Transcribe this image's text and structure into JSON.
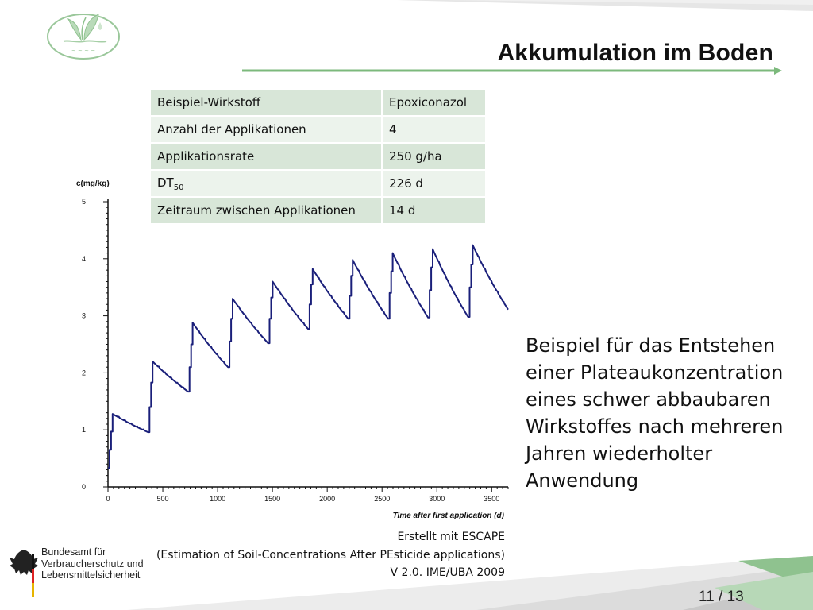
{
  "slide": {
    "title": "Akkumulation im Boden",
    "accent_color": "#7cb97c",
    "page_current": "11",
    "page_sep": "/",
    "page_total": "13"
  },
  "table": {
    "rows": [
      {
        "label": "Beispiel-Wirkstoff",
        "value": "Epoxiconazol"
      },
      {
        "label": "Anzahl der Applikationen",
        "value": "4"
      },
      {
        "label": "Applikationsrate",
        "value": "250 g/ha"
      },
      {
        "label": "DT",
        "label_sub": "50",
        "value": "226 d"
      },
      {
        "label": "Zeitraum zwischen Applikationen",
        "value": "14 d"
      }
    ]
  },
  "description": "Beispiel für das Entstehen einer Plateaukonzentration eines schwer abbaubaren Wirkstoffes nach mehreren Jahren wiederholter Anwendung",
  "credit": {
    "line1": "Erstellt mit ESCAPE",
    "line2": "(Estimation of Soil-Concentrations After PEsticide applications)",
    "line3": "V 2.0. IME/UBA 2009"
  },
  "agency": {
    "line1": "Bundesamt für",
    "line2": "Verbraucherschutz und",
    "line3": "Lebensmittelsicherheit"
  },
  "chart_data": {
    "type": "line",
    "ylabel": "c(mg/kg)",
    "xlabel": "Time after first application (d)",
    "xlim": [
      0,
      3650
    ],
    "ylim": [
      0,
      5
    ],
    "xticks": [
      0,
      500,
      1000,
      1500,
      2000,
      2500,
      3000,
      3500
    ],
    "yticks": [
      0,
      1,
      2,
      3,
      4,
      5
    ],
    "line_color": "#1a1f7a",
    "application_days_per_year": [
      0,
      14,
      28,
      42
    ],
    "series": [
      {
        "name": "",
        "x": [
          0,
          14,
          28,
          42,
          365,
          379,
          393,
          407,
          730,
          744,
          758,
          772,
          1095,
          1109,
          1123,
          1137,
          1460,
          1474,
          1488,
          1502,
          1825,
          1839,
          1853,
          1867,
          2190,
          2204,
          2218,
          2232,
          2555,
          2569,
          2583,
          2597,
          2920,
          2934,
          2948,
          2962,
          3285,
          3299,
          3313,
          3327,
          3650
        ],
        "y": [
          0.33,
          0.65,
          0.97,
          1.28,
          0.96,
          1.4,
          1.83,
          2.2,
          1.67,
          2.1,
          2.5,
          2.88,
          2.1,
          2.55,
          2.95,
          3.3,
          2.52,
          2.95,
          3.32,
          3.6,
          2.77,
          3.2,
          3.55,
          3.82,
          2.95,
          3.35,
          3.7,
          3.98,
          2.95,
          3.4,
          3.78,
          4.1,
          2.97,
          3.45,
          3.85,
          4.17,
          2.98,
          3.5,
          3.9,
          4.24,
          3.11
        ]
      }
    ]
  }
}
